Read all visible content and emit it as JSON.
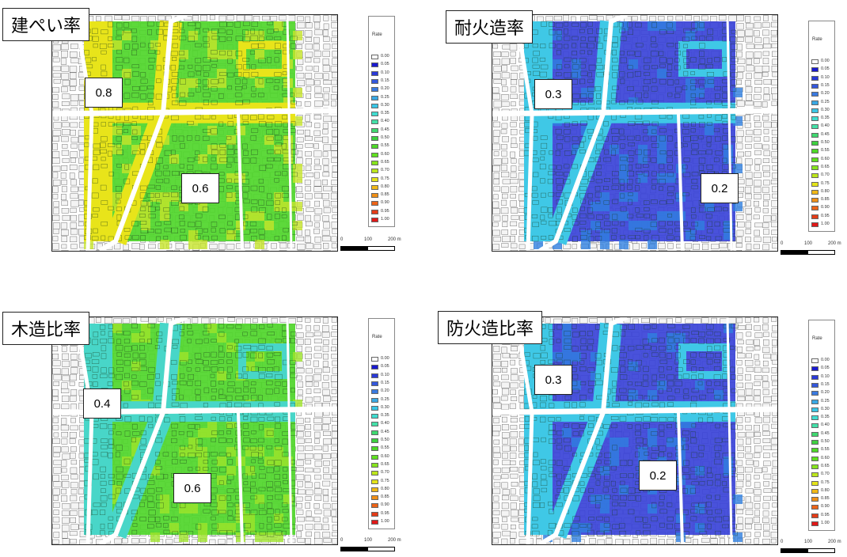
{
  "panels": [
    {
      "title": "建ぺい率",
      "labels": [
        "0.8",
        "0.6"
      ],
      "palette": {
        "main": "#4fd62a",
        "road_zone": "#e8e41a",
        "accent": "#c7e52a"
      }
    },
    {
      "title": "耐火造率",
      "labels": [
        "0.3",
        "0.2"
      ],
      "palette": {
        "main": "#3a43d8",
        "road_zone": "#3fc8e6",
        "accent": "#2f7fe0"
      }
    },
    {
      "title": "木造比率",
      "labels": [
        "0.4",
        "0.6"
      ],
      "palette": {
        "main": "#4fd62a",
        "road_zone": "#48d6c8",
        "accent": "#9fe42a"
      }
    },
    {
      "title": "防火造比率",
      "labels": [
        "0.3",
        "0.2"
      ],
      "palette": {
        "main": "#3a43d8",
        "road_zone": "#3fc8e6",
        "accent": "#2f7fe0"
      }
    }
  ],
  "legend": {
    "title": "Rate",
    "items": [
      {
        "label": "0.00",
        "color": "#ffffff"
      },
      {
        "label": "0.05",
        "color": "#1a1ad0"
      },
      {
        "label": "0.10",
        "color": "#2a3ad8"
      },
      {
        "label": "0.15",
        "color": "#3458dc"
      },
      {
        "label": "0.20",
        "color": "#3a7ae0"
      },
      {
        "label": "0.25",
        "color": "#3aa8e4"
      },
      {
        "label": "0.30",
        "color": "#3ac6e6"
      },
      {
        "label": "0.35",
        "color": "#40dcd0"
      },
      {
        "label": "0.40",
        "color": "#44e0a8"
      },
      {
        "label": "0.45",
        "color": "#40d870"
      },
      {
        "label": "0.50",
        "color": "#3ed040"
      },
      {
        "label": "0.55",
        "color": "#4ed828"
      },
      {
        "label": "0.60",
        "color": "#5fe020"
      },
      {
        "label": "0.65",
        "color": "#86e41e"
      },
      {
        "label": "0.70",
        "color": "#bce61c"
      },
      {
        "label": "0.75",
        "color": "#e4e41a"
      },
      {
        "label": "0.80",
        "color": "#f0b818"
      },
      {
        "label": "0.85",
        "color": "#f09018"
      },
      {
        "label": "0.90",
        "color": "#ec6418"
      },
      {
        "label": "0.95",
        "color": "#e43c18"
      },
      {
        "label": "1.00",
        "color": "#e01818"
      }
    ]
  },
  "scale": {
    "ticks": [
      "0",
      "100",
      "200 m"
    ]
  }
}
